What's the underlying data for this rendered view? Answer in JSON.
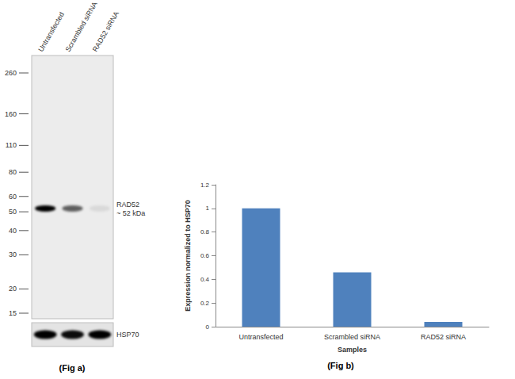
{
  "chart_data": {
    "type": "bar",
    "categories": [
      "Untransfected",
      "Scrambled siRNA",
      "RAD52 siRNA"
    ],
    "values": [
      1,
      0.46,
      0.04
    ],
    "color": "#4f81bd",
    "xlabel": "Samples",
    "ylabel": "Expression normalized to HSP70",
    "ylim": [
      0,
      1.2
    ],
    "yticks": [
      0,
      0.2,
      0.4,
      0.6,
      0.8,
      1,
      1.2
    ],
    "grid": false,
    "caption": "(Fig b)"
  },
  "blot": {
    "lanes": [
      "Untransfected",
      "Scrambled siRNA",
      "RAD52 siRNA"
    ],
    "markers_kda": [
      260,
      160,
      110,
      80,
      60,
      50,
      40,
      30,
      20,
      15
    ],
    "band": {
      "label": "RAD52",
      "size_label": "~ 52 kDa",
      "kda": 52,
      "intensity": [
        1,
        0.6,
        0.08
      ]
    },
    "loading_control": {
      "label": "HSP70",
      "intensity": [
        1,
        0.95,
        1
      ]
    },
    "caption": "(Fig a)"
  }
}
